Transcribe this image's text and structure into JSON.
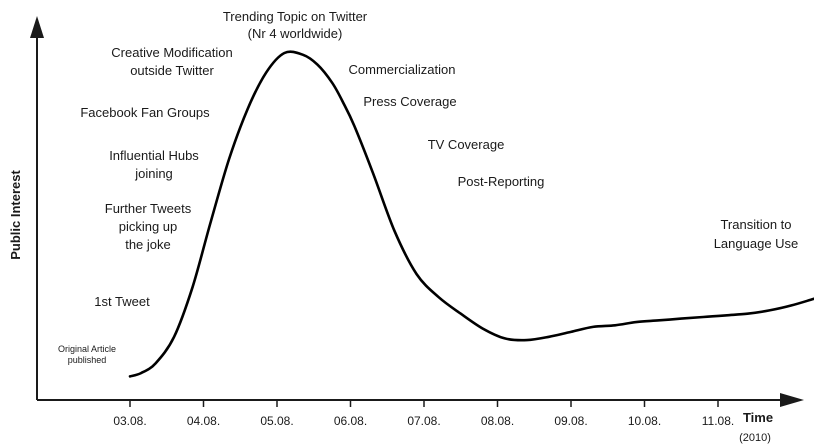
{
  "chart_data": {
    "type": "line",
    "title": "",
    "ylabel": "Public Interest",
    "xlabel": "Time",
    "xlabel_sub": "(2010)",
    "categories": [
      "03.08.",
      "04.08.",
      "05.08.",
      "06.08.",
      "07.08.",
      "08.08.",
      "09.08.",
      "10.08.",
      "11.08."
    ],
    "xlim": [
      0,
      10
    ],
    "ylim": [
      0,
      100
    ],
    "yticks_shown": false,
    "grid": false,
    "series": [
      {
        "x": [
          0.0,
          0.15,
          0.35,
          0.6,
          0.85,
          1.1,
          1.35,
          1.6,
          1.85,
          2.1,
          2.35,
          2.55,
          2.75,
          2.9,
          3.05,
          3.3,
          3.6,
          3.9,
          4.2,
          4.5,
          4.8,
          5.1,
          5.4,
          5.7,
          6.0,
          6.3,
          6.6,
          6.9,
          7.2,
          7.5,
          7.8,
          8.1,
          8.4,
          8.7,
          9.0,
          9.3,
          9.6,
          9.85
        ],
        "y": [
          2,
          3,
          6,
          14,
          29,
          49,
          68,
          83,
          94,
          100,
          99.5,
          96.5,
          91,
          85,
          78,
          64,
          46,
          33,
          26,
          21,
          16.5,
          13.5,
          13,
          14,
          15.5,
          17,
          17.5,
          18.5,
          19,
          19.5,
          20,
          20.5,
          21,
          22,
          23.5,
          25.5,
          27.5,
          30
        ]
      }
    ],
    "annotations": [
      {
        "key": "original_article",
        "lines": [
          "Original Article",
          "published"
        ]
      },
      {
        "key": "first_tweet",
        "lines": [
          "1st Tweet"
        ]
      },
      {
        "key": "further_tweets",
        "lines": [
          "Further Tweets",
          "picking up",
          "the joke"
        ]
      },
      {
        "key": "influential_hubs",
        "lines": [
          "Influential Hubs",
          "joining"
        ]
      },
      {
        "key": "facebook_fan_groups",
        "lines": [
          "Facebook Fan Groups"
        ]
      },
      {
        "key": "creative_modification",
        "lines": [
          "Creative Modification",
          "outside Twitter"
        ]
      },
      {
        "key": "trending_topic",
        "lines": [
          "Trending Topic on Twitter",
          "(Nr 4 worldwide)"
        ]
      },
      {
        "key": "commercialization",
        "lines": [
          "Commercialization"
        ]
      },
      {
        "key": "press_coverage",
        "lines": [
          "Press Coverage"
        ]
      },
      {
        "key": "tv_coverage",
        "lines": [
          "TV Coverage"
        ]
      },
      {
        "key": "post_reporting",
        "lines": [
          "Post-Reporting"
        ]
      },
      {
        "key": "transition_language",
        "lines": [
          "Transition to",
          "Language Use"
        ]
      }
    ],
    "colors": {
      "line": "#000000",
      "axis": "#1a1a1a",
      "text": "#1a1a1a"
    }
  }
}
